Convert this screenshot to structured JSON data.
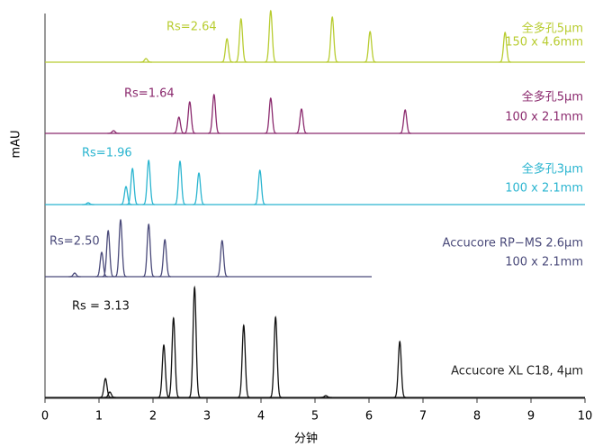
{
  "chart_data": {
    "type": "chromatogram",
    "x_label": "分钟",
    "y_label": "mAU",
    "xlim": [
      0,
      10
    ],
    "xticks": [
      0,
      1,
      2,
      3,
      4,
      5,
      6,
      7,
      8,
      9,
      10
    ],
    "series": [
      {
        "color": "#b8cc30",
        "annotation": "Rs=2.64",
        "label_lines": [
          "全多孔5μm",
          "150 x 4.6mm"
        ],
        "run_time": 10,
        "x": [
          1.87,
          3.37,
          3.63,
          4.18,
          5.32,
          6.02,
          8.52
        ],
        "values": [
          4,
          26,
          48,
          57,
          50,
          34,
          33
        ]
      },
      {
        "color": "#8b2a6e",
        "annotation": "Rs=1.64",
        "label_lines": [
          "全多孔5μm",
          "100 x 2.1mm"
        ],
        "run_time": 10,
        "x": [
          1.27,
          2.48,
          2.68,
          3.13,
          4.18,
          4.75,
          6.67
        ],
        "values": [
          3,
          18,
          35,
          43,
          39,
          27,
          26
        ]
      },
      {
        "color": "#2bb5d0",
        "annotation": "Rs=1.96",
        "label_lines": [
          "全多孔3μm",
          "100 x 2.1mm"
        ],
        "run_time": 10,
        "x": [
          0.8,
          1.5,
          1.62,
          1.92,
          2.5,
          2.85,
          3.98
        ],
        "values": [
          2,
          20,
          40,
          49,
          48,
          35,
          38
        ]
      },
      {
        "color": "#4a4a7a",
        "annotation": "Rs=2.50",
        "label_lines": [
          "Accucore RP−MS 2.6μm",
          "100 x 2.1mm"
        ],
        "run_time": 6.05,
        "x": [
          0.55,
          1.05,
          1.17,
          1.4,
          1.92,
          2.22,
          3.28
        ],
        "values": [
          4,
          27,
          51,
          63,
          58,
          41,
          40
        ]
      },
      {
        "color": "#111111",
        "annotation": "Rs = 3.13",
        "label_lines": [
          "Accucore XL C18, 4μm"
        ],
        "run_time": 10,
        "x": [
          1.12,
          1.2,
          2.2,
          2.38,
          2.77,
          3.68,
          4.27,
          5.2,
          6.57
        ],
        "values": [
          21,
          6,
          58,
          88,
          122,
          80,
          89,
          2,
          62
        ]
      }
    ]
  }
}
